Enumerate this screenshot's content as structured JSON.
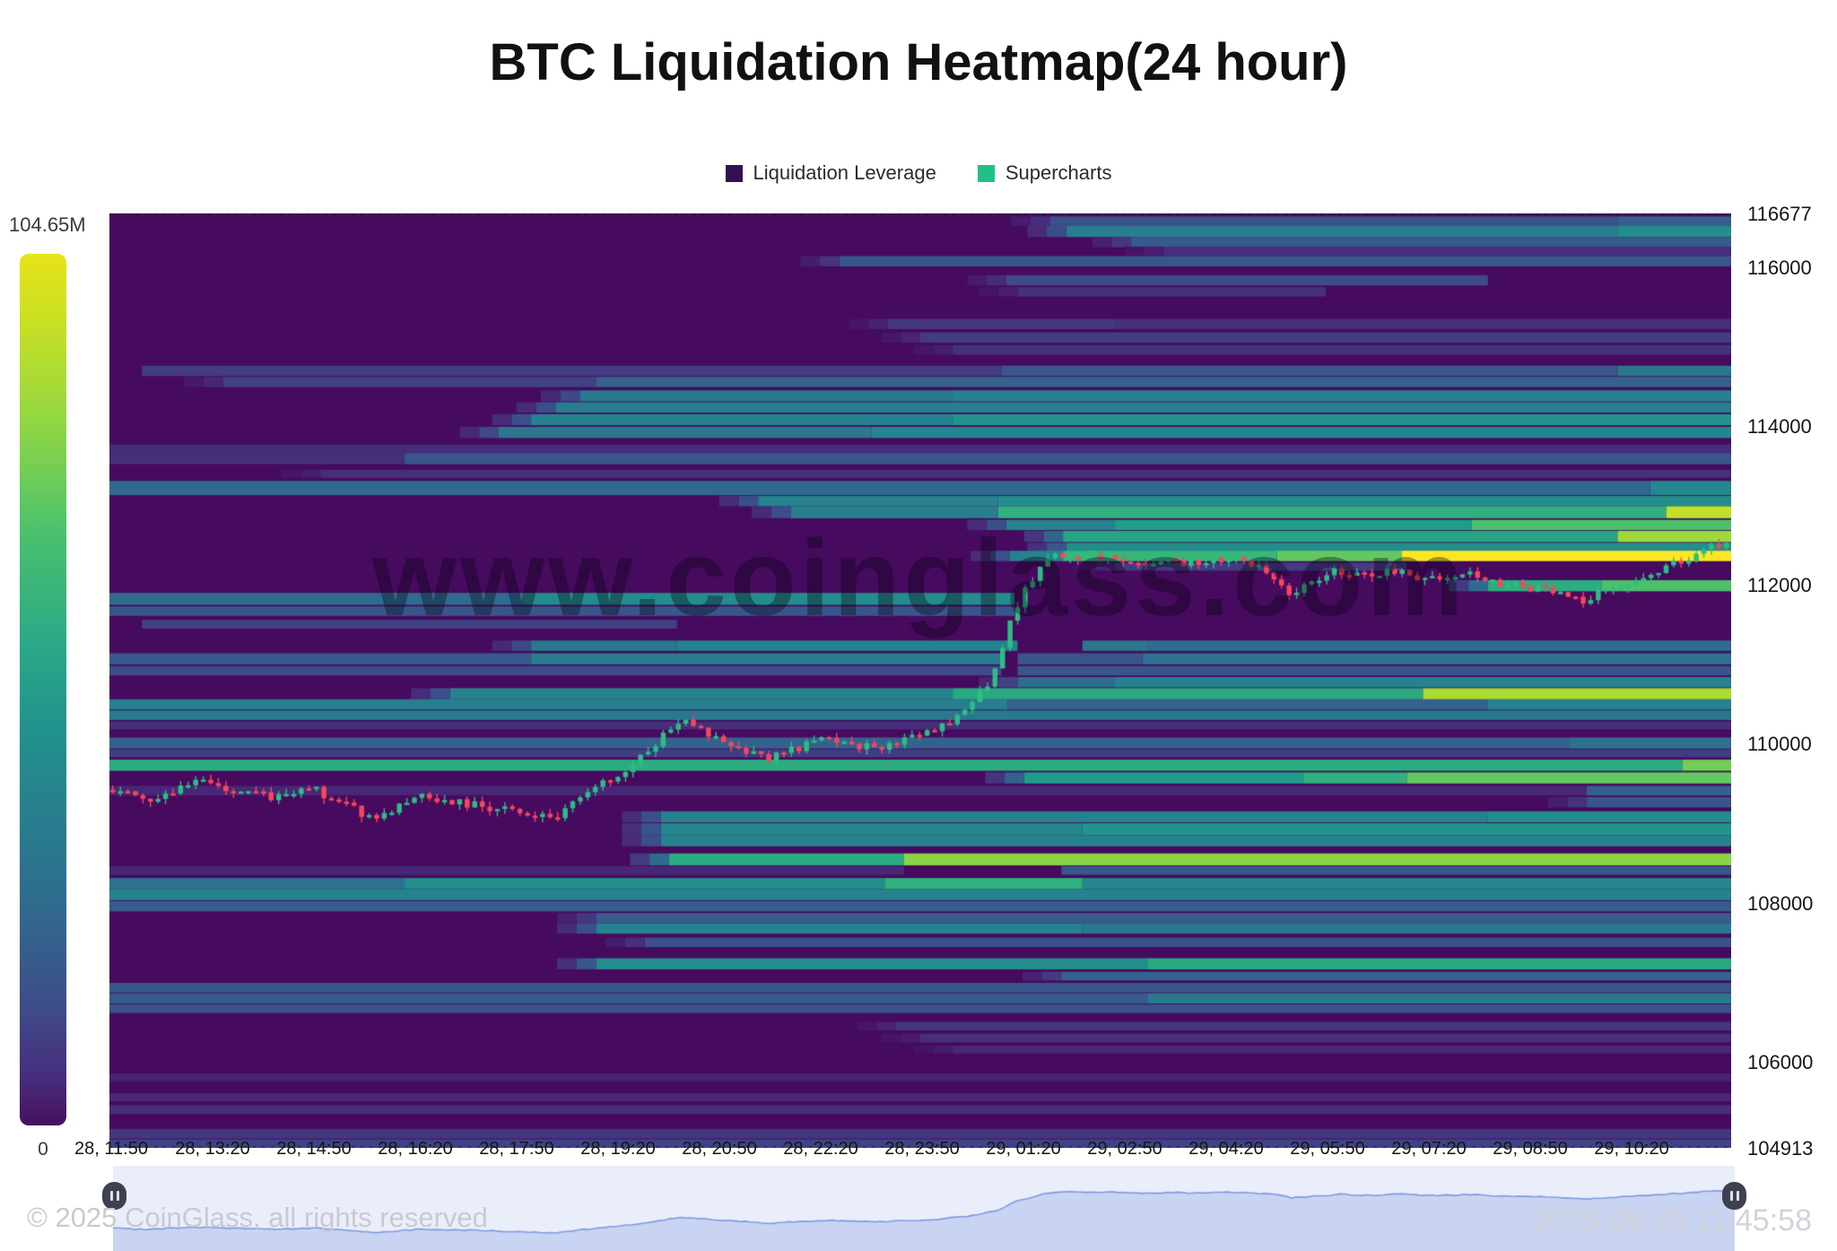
{
  "title": "BTC Liquidation Heatmap(24 hour)",
  "legend": {
    "items": [
      {
        "label": "Liquidation Leverage",
        "color": "#36104e"
      },
      {
        "label": "Supercharts",
        "color": "#21c186"
      }
    ]
  },
  "colorbar": {
    "max_label": "104.65M",
    "min_label": "0"
  },
  "watermark": "www.coinglass.com",
  "footer": {
    "copyright": "© 2025 CoinGlass, all rights reserved",
    "timestamp": "2025-09-29 11:45:58"
  },
  "chart_data": {
    "type": "heatmap",
    "title": "BTC Liquidation Heatmap(24 hour)",
    "xlabel": "",
    "ylabel": "",
    "x_labels": [
      "28, 11:50",
      "28, 13:20",
      "28, 14:50",
      "28, 16:20",
      "28, 17:50",
      "28, 19:20",
      "28, 20:50",
      "28, 22:20",
      "28, 23:50",
      "29, 01:20",
      "29, 02:50",
      "29, 04:20",
      "29, 05:50",
      "29, 07:20",
      "29, 08:50",
      "29, 10:20"
    ],
    "y_ticks": [
      116677,
      116000,
      114000,
      112000,
      110000,
      108000,
      106000,
      104913
    ],
    "y_min": 104913,
    "y_max": 116677,
    "colorbar_max_value_label": "104.65M",
    "colorbar_min_value_label": "0",
    "background_color": "#460a5e",
    "viridis_stops": [
      [
        0,
        "#460a5e"
      ],
      [
        0.125,
        "#482878"
      ],
      [
        0.25,
        "#3e4a89"
      ],
      [
        0.375,
        "#31688e"
      ],
      [
        0.5,
        "#26828e"
      ],
      [
        0.625,
        "#1f9e89"
      ],
      [
        0.75,
        "#35b779"
      ],
      [
        0.875,
        "#6ece58"
      ],
      [
        0.94,
        "#b5de2b"
      ],
      [
        1,
        "#fde725"
      ]
    ],
    "candle_colors": {
      "up": "#2ebd85",
      "down": "#f6465d"
    },
    "price_line": [
      [
        0,
        109430
      ],
      [
        0.02,
        109300
      ],
      [
        0.05,
        109520
      ],
      [
        0.095,
        109330
      ],
      [
        0.125,
        109430
      ],
      [
        0.16,
        109060
      ],
      [
        0.19,
        109340
      ],
      [
        0.23,
        109220
      ],
      [
        0.273,
        109050
      ],
      [
        0.3,
        109450
      ],
      [
        0.32,
        109700
      ],
      [
        0.351,
        110300
      ],
      [
        0.37,
        110120
      ],
      [
        0.405,
        109820
      ],
      [
        0.44,
        110060
      ],
      [
        0.47,
        109950
      ],
      [
        0.5,
        110080
      ],
      [
        0.528,
        110380
      ],
      [
        0.545,
        110850
      ],
      [
        0.558,
        111650
      ],
      [
        0.572,
        112150
      ],
      [
        0.585,
        112420
      ],
      [
        0.6,
        112300
      ],
      [
        0.615,
        112390
      ],
      [
        0.633,
        112240
      ],
      [
        0.652,
        112330
      ],
      [
        0.67,
        112260
      ],
      [
        0.688,
        112340
      ],
      [
        0.705,
        112270
      ],
      [
        0.718,
        112130
      ],
      [
        0.728,
        111890
      ],
      [
        0.74,
        112010
      ],
      [
        0.758,
        112180
      ],
      [
        0.775,
        112090
      ],
      [
        0.795,
        112190
      ],
      [
        0.815,
        112070
      ],
      [
        0.835,
        112160
      ],
      [
        0.855,
        112040
      ],
      [
        0.875,
        111990
      ],
      [
        0.895,
        111880
      ],
      [
        0.912,
        111800
      ],
      [
        0.928,
        111960
      ],
      [
        0.945,
        112090
      ],
      [
        0.962,
        112220
      ],
      [
        0.978,
        112360
      ],
      [
        0.99,
        112460
      ],
      [
        1,
        112540
      ]
    ],
    "bands": [
      [
        116640,
        120,
        [
          [
            0.58,
            0.93,
            0.28
          ],
          [
            0.93,
            1,
            0.34
          ]
        ]
      ],
      [
        116520,
        140,
        [
          [
            0.59,
            0.93,
            0.48
          ],
          [
            0.93,
            1,
            0.55
          ]
        ]
      ],
      [
        116380,
        130,
        [
          [
            0.63,
            1,
            0.32
          ]
        ]
      ],
      [
        116260,
        120,
        [
          [
            0.65,
            1,
            0.15
          ]
        ]
      ],
      [
        116140,
        130,
        [
          [
            0.45,
            1,
            0.3
          ]
        ]
      ],
      [
        115900,
        130,
        [
          [
            0.553,
            0.85,
            0.25
          ]
        ]
      ],
      [
        115750,
        120,
        [
          [
            0.56,
            0.75,
            0.15
          ]
        ]
      ],
      [
        115350,
        130,
        [
          [
            0.48,
            0.62,
            0.18
          ],
          [
            0.62,
            1,
            0.15
          ]
        ]
      ],
      [
        115180,
        130,
        [
          [
            0.5,
            1,
            0.2
          ]
        ]
      ],
      [
        115020,
        120,
        [
          [
            0.52,
            1,
            0.16
          ]
        ]
      ],
      [
        114760,
        130,
        [
          [
            0.02,
            0.55,
            0.2
          ],
          [
            0.55,
            0.93,
            0.3
          ],
          [
            0.93,
            1,
            0.45
          ]
        ]
      ],
      [
        114620,
        130,
        [
          [
            0.07,
            0.3,
            0.22
          ],
          [
            0.3,
            1,
            0.35
          ]
        ]
      ],
      [
        114450,
        140,
        [
          [
            0.29,
            0.52,
            0.45
          ],
          [
            0.52,
            1,
            0.5
          ]
        ]
      ],
      [
        114300,
        130,
        [
          [
            0.275,
            1,
            0.48
          ]
        ]
      ],
      [
        114150,
        140,
        [
          [
            0.26,
            0.52,
            0.5
          ],
          [
            0.52,
            1,
            0.58
          ]
        ]
      ],
      [
        113990,
        140,
        [
          [
            0.24,
            0.47,
            0.45
          ],
          [
            0.47,
            1,
            0.52
          ]
        ]
      ],
      [
        113770,
        110,
        [
          [
            0,
            1,
            0.14
          ]
        ]
      ],
      [
        113660,
        140,
        [
          [
            0,
            0.182,
            0.15
          ],
          [
            0.182,
            1,
            0.3
          ]
        ]
      ],
      [
        113450,
        100,
        [
          [
            0.13,
            1,
            0.15
          ]
        ]
      ],
      [
        113310,
        180,
        [
          [
            0,
            0.95,
            0.38
          ],
          [
            0.95,
            1,
            0.52
          ]
        ]
      ],
      [
        113120,
        130,
        [
          [
            0.4,
            0.548,
            0.5
          ],
          [
            0.548,
            1,
            0.55
          ]
        ]
      ],
      [
        112990,
        150,
        [
          [
            0.42,
            0.548,
            0.48
          ],
          [
            0.548,
            0.96,
            0.72
          ],
          [
            0.96,
            1,
            0.95
          ]
        ]
      ],
      [
        112820,
        130,
        [
          [
            0.553,
            0.62,
            0.5
          ],
          [
            0.62,
            0.84,
            0.62
          ],
          [
            0.84,
            1,
            0.8
          ]
        ]
      ],
      [
        112680,
        140,
        [
          [
            0.588,
            0.93,
            0.66
          ],
          [
            0.93,
            1,
            0.92
          ]
        ]
      ],
      [
        112530,
        120,
        [
          [
            0.59,
            1,
            0.55
          ]
        ]
      ],
      [
        112430,
        130,
        [
          [
            0.555,
            0.588,
            0.5
          ],
          [
            0.588,
            0.72,
            0.75
          ],
          [
            0.72,
            0.797,
            0.85
          ],
          [
            0.797,
            1,
            1.0
          ]
        ]
      ],
      [
        112280,
        100,
        [
          [
            0.62,
            0.8,
            0.2
          ]
        ]
      ],
      [
        112060,
        140,
        [
          [
            0.85,
            0.92,
            0.7
          ],
          [
            0.92,
            1,
            0.8
          ]
        ]
      ],
      [
        111900,
        150,
        [
          [
            0,
            0.255,
            0.4
          ],
          [
            0.255,
            0.558,
            0.55
          ]
        ]
      ],
      [
        111730,
        120,
        [
          [
            0,
            0.558,
            0.3
          ]
        ]
      ],
      [
        111560,
        110,
        [
          [
            0.02,
            0.35,
            0.22
          ]
        ]
      ],
      [
        111300,
        130,
        [
          [
            0.26,
            0.35,
            0.45
          ],
          [
            0.35,
            0.56,
            0.5
          ],
          [
            0.6,
            0.64,
            0.45
          ],
          [
            0.64,
            1,
            0.4
          ]
        ]
      ],
      [
        111140,
        140,
        [
          [
            0,
            0.26,
            0.32
          ],
          [
            0.26,
            0.55,
            0.48
          ],
          [
            0.56,
            0.637,
            0.3
          ],
          [
            0.637,
            1,
            0.42
          ]
        ]
      ],
      [
        110980,
        120,
        [
          [
            0,
            0.55,
            0.25
          ],
          [
            0.56,
            1,
            0.3
          ]
        ]
      ],
      [
        110840,
        130,
        [
          [
            0.56,
            0.62,
            0.4
          ],
          [
            0.62,
            1,
            0.5
          ]
        ]
      ],
      [
        110700,
        140,
        [
          [
            0.21,
            0.52,
            0.5
          ],
          [
            0.52,
            0.81,
            0.68
          ],
          [
            0.81,
            1,
            0.93
          ]
        ]
      ],
      [
        110560,
        130,
        [
          [
            0,
            0.554,
            0.48
          ],
          [
            0.554,
            0.85,
            0.35
          ],
          [
            0.85,
            1,
            0.5
          ]
        ]
      ],
      [
        110420,
        120,
        [
          [
            0,
            1,
            0.45
          ]
        ]
      ],
      [
        110280,
        100,
        [
          [
            0,
            1,
            0.15
          ]
        ]
      ],
      [
        110080,
        140,
        [
          [
            0,
            0.9,
            0.35
          ],
          [
            0.9,
            1,
            0.42
          ]
        ]
      ],
      [
        109930,
        100,
        [
          [
            0,
            1,
            0.2
          ]
        ]
      ],
      [
        109800,
        140,
        [
          [
            0,
            0.97,
            0.7
          ],
          [
            0.97,
            1,
            0.88
          ]
        ]
      ],
      [
        109640,
        140,
        [
          [
            0.564,
            0.736,
            0.62
          ],
          [
            0.736,
            0.8,
            0.72
          ],
          [
            0.8,
            1,
            0.85
          ]
        ]
      ],
      [
        109470,
        120,
        [
          [
            0,
            0.911,
            0.12
          ],
          [
            0.911,
            1,
            0.35
          ]
        ]
      ],
      [
        109330,
        130,
        [
          [
            0.911,
            1,
            0.3
          ]
        ]
      ],
      [
        109150,
        140,
        [
          [
            0.34,
            0.85,
            0.5
          ],
          [
            0.85,
            1,
            0.55
          ]
        ]
      ],
      [
        109000,
        150,
        [
          [
            0.34,
            0.6,
            0.52
          ],
          [
            0.6,
            1,
            0.58
          ]
        ]
      ],
      [
        108850,
        140,
        [
          [
            0.34,
            1,
            0.5
          ]
        ]
      ],
      [
        108620,
        150,
        [
          [
            0.345,
            0.49,
            0.7
          ],
          [
            0.49,
            1,
            0.9
          ]
        ]
      ],
      [
        108460,
        110,
        [
          [
            0,
            0.49,
            0.12
          ],
          [
            0.587,
            1,
            0.3
          ]
        ]
      ],
      [
        108310,
        140,
        [
          [
            0,
            0.182,
            0.42
          ],
          [
            0.182,
            0.478,
            0.55
          ],
          [
            0.478,
            0.6,
            0.72
          ],
          [
            0.6,
            1,
            0.52
          ]
        ]
      ],
      [
        108170,
        140,
        [
          [
            0,
            1,
            0.5
          ]
        ]
      ],
      [
        108020,
        130,
        [
          [
            0,
            1,
            0.32
          ]
        ]
      ],
      [
        107870,
        130,
        [
          [
            0.3,
            1,
            0.33
          ]
        ]
      ],
      [
        107740,
        130,
        [
          [
            0.3,
            0.6,
            0.5
          ],
          [
            0.6,
            1,
            0.45
          ]
        ]
      ],
      [
        107560,
        120,
        [
          [
            0.33,
            1,
            0.28
          ]
        ]
      ],
      [
        107300,
        140,
        [
          [
            0.3,
            0.64,
            0.55
          ],
          [
            0.64,
            1,
            0.68
          ]
        ]
      ],
      [
        107130,
        110,
        [
          [
            0.587,
            1,
            0.35
          ]
        ]
      ],
      [
        106990,
        120,
        [
          [
            0,
            1,
            0.3
          ]
        ]
      ],
      [
        106860,
        130,
        [
          [
            0,
            0.64,
            0.32
          ],
          [
            0.64,
            1,
            0.45
          ]
        ]
      ],
      [
        106720,
        110,
        [
          [
            0,
            1,
            0.28
          ]
        ]
      ],
      [
        106500,
        110,
        [
          [
            0.485,
            1,
            0.18
          ]
        ]
      ],
      [
        106350,
        110,
        [
          [
            0.5,
            1,
            0.15
          ]
        ]
      ],
      [
        106200,
        100,
        [
          [
            0.52,
            1,
            0.12
          ]
        ]
      ],
      [
        105850,
        100,
        [
          [
            0,
            1,
            0.1
          ]
        ]
      ],
      [
        105600,
        100,
        [
          [
            0,
            1,
            0.12
          ]
        ]
      ],
      [
        105450,
        110,
        [
          [
            0,
            1,
            0.15
          ]
        ]
      ],
      [
        105150,
        120,
        [
          [
            0,
            1,
            0.18
          ]
        ]
      ],
      [
        105020,
        110,
        [
          [
            0,
            1,
            0.22
          ]
        ]
      ]
    ]
  },
  "navigator": {
    "band_color": "#eaeefb",
    "fill_color": "#c9d4f2",
    "line_color": "#7d9ae0",
    "handle_color": "#3d4152"
  }
}
